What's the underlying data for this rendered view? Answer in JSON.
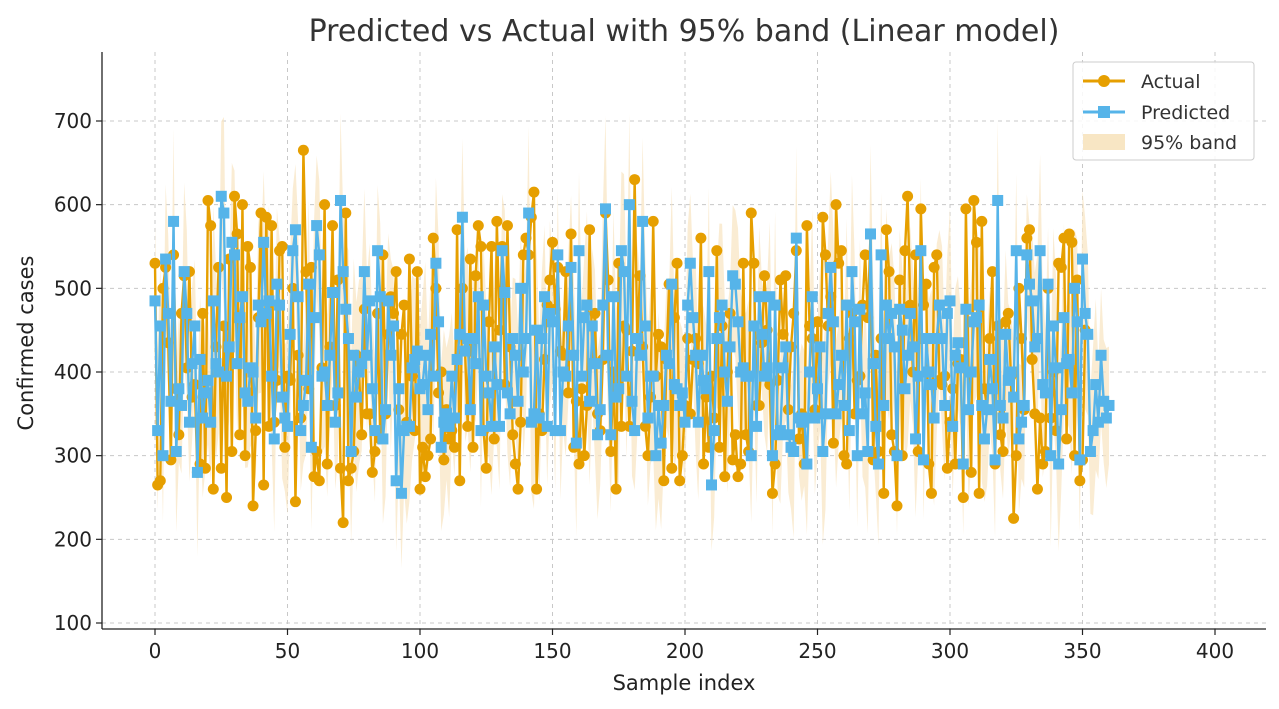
{
  "chart_data": {
    "type": "line",
    "title": "Predicted vs Actual with 95% band (Linear model)",
    "xlabel": "Sample index",
    "ylabel": "Confirmed cases",
    "xlim": [
      -20,
      420
    ],
    "ylim": [
      90,
      780
    ],
    "x_ticks": [
      0,
      50,
      100,
      150,
      200,
      250,
      300,
      350,
      400
    ],
    "y_ticks": [
      100,
      200,
      300,
      400,
      500,
      600,
      700
    ],
    "grid": true,
    "legend": "top-right",
    "colors": {
      "actual": "#E69F00",
      "predicted": "#56B4E9",
      "band": "#F8E6C4"
    },
    "band_label": "95% band",
    "band_halfwidth_approx": 90,
    "series": [
      {
        "name": "Actual",
        "marker": "circle",
        "values": [
          530,
          265,
          270,
          500,
          525,
          435,
          295,
          540,
          380,
          325,
          470,
          515,
          405,
          520,
          370,
          385,
          280,
          290,
          470,
          285,
          605,
          575,
          260,
          430,
          525,
          285,
          455,
          250,
          535,
          305,
          610,
          565,
          325,
          600,
          300,
          550,
          525,
          240,
          330,
          465,
          590,
          265,
          585,
          335,
          575,
          340,
          390,
          545,
          550,
          310,
          395,
          390,
          500,
          245,
          420,
          345,
          665,
          520,
          380,
          525,
          275,
          305,
          270,
          405,
          600,
          290,
          430,
          575,
          360,
          510,
          285,
          220,
          590,
          270,
          285,
          305,
          420,
          400,
          325,
          475,
          350,
          350,
          280,
          305,
          470,
          320,
          540,
          350,
          445,
          490,
          470,
          520,
          355,
          445,
          480,
          340,
          535,
          395,
          330,
          520,
          260,
          310,
          275,
          300,
          320,
          560,
          500,
          375,
          400,
          295,
          355,
          320,
          330,
          310,
          570,
          270,
          500,
          425,
          335,
          535,
          310,
          515,
          575,
          550,
          330,
          285,
          460,
          550,
          320,
          580,
          450,
          550,
          385,
          575,
          430,
          325,
          290,
          260,
          340,
          540,
          560,
          540,
          585,
          615,
          260,
          350,
          330,
          415,
          480,
          510,
          555,
          475,
          525,
          425,
          420,
          520,
          375,
          565,
          310,
          365,
          290,
          380,
          300,
          360,
          570,
          410,
          470,
          350,
          330,
          415,
          590,
          510,
          305,
          400,
          260,
          530,
          335,
          455,
          450,
          335,
          425,
          630,
          440,
          515,
          430,
          335,
          300,
          370,
          580,
          395,
          445,
          430,
          270,
          415,
          505,
          285,
          465,
          530,
          270,
          300,
          360,
          440,
          350,
          415,
          440,
          410,
          560,
          290,
          370,
          310,
          395,
          345,
          545,
          310,
          455,
          275,
          400,
          470,
          295,
          325,
          275,
          290,
          530,
          325,
          305,
          590,
          530,
          360,
          360,
          435,
          515,
          450,
          385,
          255,
          290,
          390,
          510,
          445,
          515,
          355,
          430,
          470,
          545,
          320,
          350,
          290,
          575,
          455,
          440,
          355,
          460,
          350,
          585,
          540,
          455,
          490,
          315,
          600,
          530,
          545,
          300,
          290,
          440,
          470,
          350,
          390,
          395,
          480,
          540,
          465,
          565,
          295,
          420,
          305,
          440,
          255,
          570,
          520,
          325,
          305,
          240,
          510,
          300,
          545,
          610,
          480,
          400,
          540,
          305,
          595,
          480,
          505,
          290,
          255,
          525,
          540,
          390,
          385,
          395,
          285,
          340,
          380,
          290,
          410,
          415,
          250,
          595,
          400,
          280,
          605,
          555,
          255,
          580,
          380,
          355,
          440,
          520,
          290,
          455,
          325,
          305,
          460,
          470,
          395,
          225,
          300,
          500,
          440,
          355,
          560,
          570,
          415,
          350,
          260,
          345,
          290,
          305,
          500,
          345,
          400,
          330,
          530,
          525,
          560,
          320,
          565,
          555,
          300,
          510,
          270,
          295,
          450
        ]
      },
      {
        "name": "Predicted",
        "marker": "square",
        "values": [
          485,
          330,
          455,
          300,
          535,
          470,
          365,
          580,
          305,
          380,
          360,
          520,
          470,
          340,
          410,
          455,
          280,
          415,
          345,
          375,
          390,
          340,
          485,
          410,
          400,
          610,
          590,
          395,
          430,
          555,
          540,
          410,
          465,
          490,
          375,
          365,
          405,
          400,
          345,
          480,
          460,
          555,
          470,
          485,
          395,
          320,
          505,
          480,
          370,
          345,
          335,
          445,
          545,
          570,
          490,
          330,
          360,
          390,
          505,
          310,
          465,
          575,
          540,
          395,
          400,
          360,
          420,
          495,
          340,
          375,
          605,
          520,
          475,
          440,
          305,
          420,
          370,
          400,
          410,
          520,
          420,
          485,
          380,
          330,
          545,
          490,
          320,
          355,
          485,
          420,
          455,
          270,
          380,
          255,
          330,
          335,
          335,
          405,
          415,
          425,
          380,
          385,
          420,
          355,
          445,
          395,
          530,
          460,
          310,
          340,
          350,
          335,
          395,
          345,
          415,
          445,
          585,
          425,
          440,
          355,
          440,
          410,
          490,
          330,
          480,
          395,
          375,
          335,
          430,
          385,
          335,
          545,
          495,
          375,
          350,
          440,
          420,
          365,
          500,
          400,
          440,
          590,
          340,
          350,
          450,
          345,
          440,
          490,
          335,
          470,
          460,
          330,
          540,
          330,
          400,
          395,
          455,
          525,
          420,
          315,
          545,
          395,
          465,
          480,
          365,
          455,
          410,
          325,
          355,
          480,
          595,
          420,
          325,
          490,
          370,
          380,
          545,
          520,
          395,
          600,
          365,
          330,
          440,
          420,
          580,
          455,
          345,
          395,
          395,
          300,
          360,
          315,
          360,
          420,
          410,
          505,
          385,
          380,
          360,
          375,
          340,
          480,
          530,
          465,
          420,
          340,
          420,
          390,
          380,
          520,
          265,
          330,
          440,
          465,
          480,
          400,
          365,
          430,
          515,
          505,
          460,
          400,
          405,
          395,
          395,
          300,
          455,
          335,
          490,
          445,
          395,
          405,
          490,
          300,
          480,
          325,
          330,
          405,
          430,
          325,
          310,
          305,
          560,
          345,
          340,
          345,
          290,
          400,
          490,
          345,
          380,
          430,
          305,
          350,
          470,
          525,
          460,
          350,
          385,
          420,
          360,
          480,
          330,
          520,
          460,
          300,
          475,
          350,
          375,
          305,
          565,
          410,
          335,
          290,
          540,
          360,
          480,
          440,
          470,
          430,
          300,
          475,
          450,
          380,
          420,
          470,
          430,
          320,
          395,
          545,
          295,
          440,
          400,
          385,
          345,
          440,
          480,
          440,
          360,
          470,
          485,
          335,
          420,
          435,
          405,
          290,
          475,
          355,
          400,
          460,
          465,
          480,
          360,
          320,
          355,
          415,
          380,
          295,
          605,
          360,
          345,
          445,
          390,
          400,
          370,
          545,
          320,
          340,
          360,
          540,
          505,
          485,
          430,
          440,
          545,
          385,
          375,
          505,
          300,
          455,
          405,
          290,
          355,
          465,
          410,
          415,
          375,
          500,
          460,
          295,
          535,
          470,
          445,
          305,
          330,
          385,
          340,
          420,
          365,
          345,
          360
        ]
      }
    ]
  }
}
